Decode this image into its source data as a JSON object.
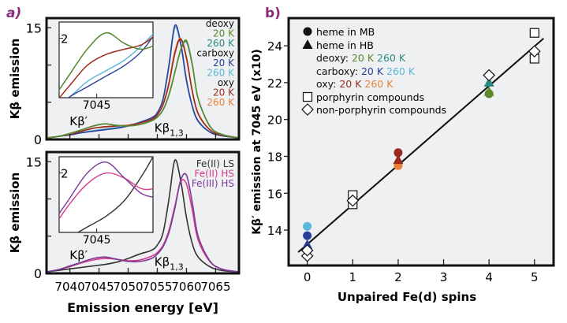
{
  "colors": {
    "deoxy20": "#5b8a2e",
    "deoxy260": "#2a8a80",
    "carboxy20": "#2a3f9a",
    "carboxy260": "#5bb8d8",
    "oxy20": "#9b2a1e",
    "oxy260": "#e8823a",
    "fe2ls": "#333333",
    "fe2hs": "#d83a8a",
    "fe3hs": "#7a3a9a",
    "panel_label": "#8a2a7a",
    "plot_bg": "#eef0f2"
  },
  "chart_data": [
    {
      "type": "line",
      "panel": "a)",
      "ylabel": "Kβ emission",
      "xlabel": "",
      "xlim": [
        7036,
        7069
      ],
      "ylim": [
        0,
        16.3
      ],
      "yticks": [
        "0",
        "15"
      ],
      "annotations": [
        "Kβ′",
        "Kβ1,3"
      ],
      "legend": [
        {
          "text": "deoxy"
        },
        {
          "text": "20 K",
          "color": "deoxy20"
        },
        {
          "text": "260 K",
          "color": "deoxy260"
        },
        {
          "text": "carboxy"
        },
        {
          "text": "20 K",
          "color": "carboxy20"
        },
        {
          "text": "260 K",
          "color": "carboxy260"
        },
        {
          "text": "oxy"
        },
        {
          "text": "20 K",
          "color": "oxy20"
        },
        {
          "text": "260 K",
          "color": "oxy260"
        }
      ],
      "inset": {
        "xtick": "7045",
        "ytick": "2",
        "xlim": [
          7041,
          7051
        ],
        "ylim": [
          0.9,
          2.3
        ]
      },
      "x": [
        7036,
        7038,
        7040,
        7042,
        7044,
        7046,
        7048,
        7050,
        7052,
        7054,
        7055,
        7056,
        7057,
        7058,
        7059,
        7060,
        7061,
        7062,
        7064,
        7066,
        7069
      ],
      "series": [
        {
          "key": "carboxy260",
          "values": [
            0.2,
            0.4,
            0.7,
            0.9,
            1.2,
            1.4,
            1.6,
            1.9,
            2.3,
            2.9,
            3.6,
            5.4,
            9.8,
            15.0,
            12.8,
            7.8,
            4.4,
            2.4,
            1.0,
            0.5,
            0.2
          ]
        },
        {
          "key": "carboxy20",
          "values": [
            0.2,
            0.4,
            0.6,
            0.9,
            1.1,
            1.3,
            1.5,
            1.8,
            2.3,
            2.9,
            3.6,
            5.5,
            10,
            15.3,
            13,
            8,
            4.5,
            2.5,
            1.0,
            0.5,
            0.2
          ]
        },
        {
          "key": "oxy260",
          "values": [
            0.2,
            0.4,
            0.7,
            1.1,
            1.5,
            1.7,
            1.8,
            1.9,
            2.2,
            2.7,
            3.3,
            4.8,
            7.7,
            11.8,
            13.6,
            10.8,
            6.4,
            3.4,
            1.3,
            0.6,
            0.2
          ]
        },
        {
          "key": "oxy20",
          "values": [
            0.2,
            0.4,
            0.7,
            1.1,
            1.5,
            1.7,
            1.8,
            1.9,
            2.2,
            2.7,
            3.3,
            4.7,
            7.5,
            11.5,
            13.5,
            11,
            6.5,
            3.5,
            1.3,
            0.6,
            0.2
          ]
        },
        {
          "key": "deoxy260",
          "values": [
            0.2,
            0.4,
            0.8,
            1.3,
            1.8,
            2.1,
            1.9,
            1.8,
            2.0,
            2.5,
            3.0,
            4.0,
            6.0,
            9.0,
            12.0,
            13.1,
            10.0,
            5.5,
            1.8,
            0.7,
            0.2
          ]
        },
        {
          "key": "deoxy20",
          "values": [
            0.2,
            0.4,
            0.8,
            1.3,
            1.8,
            2.1,
            1.9,
            1.8,
            2.0,
            2.5,
            3.0,
            4.0,
            6.0,
            9.0,
            12.0,
            13.3,
            10.1,
            5.5,
            1.8,
            0.7,
            0.2
          ]
        }
      ]
    },
    {
      "type": "line",
      "ylabel": "Kβ emission",
      "xlabel": "Emission energy [eV]",
      "xlim": [
        7036,
        7069
      ],
      "ylim": [
        0,
        16.3
      ],
      "xticks": [
        "7040",
        "7045",
        "7050",
        "7055",
        "7060",
        "7065"
      ],
      "yticks": [
        "0",
        "15"
      ],
      "annotations": [
        "Kβ′",
        "Kβ1,3"
      ],
      "legend": [
        {
          "text": "Fe(II) LS",
          "color": "fe2ls"
        },
        {
          "text": "Fe(II) HS",
          "color": "fe2hs"
        },
        {
          "text": "Fe(III) HS",
          "color": "fe3hs"
        }
      ],
      "inset": {
        "xtick": "7045",
        "ytick": "2",
        "xlim": [
          7041,
          7051
        ],
        "ylim": [
          0.9,
          2.3
        ]
      },
      "x": [
        7036,
        7038,
        7040,
        7042,
        7044,
        7046,
        7048,
        7050,
        7052,
        7054,
        7055,
        7056,
        7057,
        7058,
        7059,
        7060,
        7061,
        7062,
        7064,
        7066,
        7069
      ],
      "series": [
        {
          "key": "fe2ls",
          "values": [
            0.2,
            0.4,
            0.6,
            0.8,
            1.0,
            1.2,
            1.5,
            2.0,
            2.6,
            3.1,
            3.8,
            5.5,
            10,
            15.2,
            12.5,
            7.5,
            4,
            2.2,
            0.9,
            0.4,
            0.2
          ]
        },
        {
          "key": "fe2hs",
          "values": [
            0.2,
            0.5,
            0.9,
            1.4,
            1.8,
            2.0,
            1.9,
            1.7,
            1.8,
            2.3,
            2.8,
            3.8,
            5.8,
            9,
            12.3,
            12,
            8.5,
            4.5,
            1.6,
            0.6,
            0.2
          ]
        },
        {
          "key": "fe3hs",
          "values": [
            0.2,
            0.5,
            1.0,
            1.5,
            2.0,
            2.2,
            1.9,
            1.6,
            1.6,
            2.0,
            2.6,
            3.6,
            5.5,
            8.7,
            12.5,
            13.2,
            9.5,
            5,
            1.7,
            0.6,
            0.2
          ]
        }
      ]
    },
    {
      "type": "scatter",
      "panel": "b)",
      "xlabel": "Unpaired Fe(d) spins",
      "ylabel": "Kβ′ emission at 7045 eV (x10)",
      "xlim": [
        -0.41,
        5.42
      ],
      "ylim": [
        12.08,
        25.5
      ],
      "xticks": [
        "0",
        "1",
        "2",
        "3",
        "4",
        "5"
      ],
      "yticks": [
        "14",
        "16",
        "18",
        "20",
        "22",
        "24"
      ],
      "legend": {
        "mb": "heme in MB",
        "hb": "heme in HB",
        "deoxy": "deoxy:",
        "carboxy": "carboxy:",
        "oxy": "oxy:",
        "t20": "20 K",
        "t260": "260 K",
        "porph": "porphyrin compounds",
        "nonporph": "non-porphyrin compounds"
      },
      "fit_line": [
        [
          -0.2,
          12.8
        ],
        [
          5.2,
          24.4
        ]
      ],
      "points": [
        {
          "marker": "circle",
          "color": "carboxy260",
          "x": 0,
          "y": 14.2
        },
        {
          "marker": "circle",
          "color": "carboxy20",
          "x": 0,
          "y": 13.7
        },
        {
          "marker": "triangle",
          "color": "carboxy20",
          "x": 0,
          "y": 13.2
        },
        {
          "marker": "circle",
          "color": "oxy260",
          "x": 2,
          "y": 17.5
        },
        {
          "marker": "triangle",
          "color": "oxy20",
          "x": 2,
          "y": 17.8
        },
        {
          "marker": "circle",
          "color": "oxy20",
          "x": 2,
          "y": 18.2
        },
        {
          "marker": "circle",
          "color": "deoxy20",
          "x": 4,
          "y": 21.4
        },
        {
          "marker": "triangle",
          "color": "deoxy20",
          "x": 4,
          "y": 21.5
        },
        {
          "marker": "triangle",
          "color": "deoxy260",
          "x": 4,
          "y": 22.0
        },
        {
          "marker": "square",
          "x": 1,
          "y": 15.9
        },
        {
          "marker": "square",
          "x": 1,
          "y": 15.4
        },
        {
          "marker": "square",
          "x": 5,
          "y": 24.7
        },
        {
          "marker": "square",
          "x": 5,
          "y": 23.3
        },
        {
          "marker": "diamond",
          "x": 0,
          "y": 12.6
        },
        {
          "marker": "diamond",
          "x": 0,
          "y": 12.9
        },
        {
          "marker": "diamond",
          "x": 1,
          "y": 15.6
        },
        {
          "marker": "diamond",
          "x": 4,
          "y": 22.4
        },
        {
          "marker": "diamond",
          "x": 5,
          "y": 23.7
        }
      ]
    }
  ]
}
